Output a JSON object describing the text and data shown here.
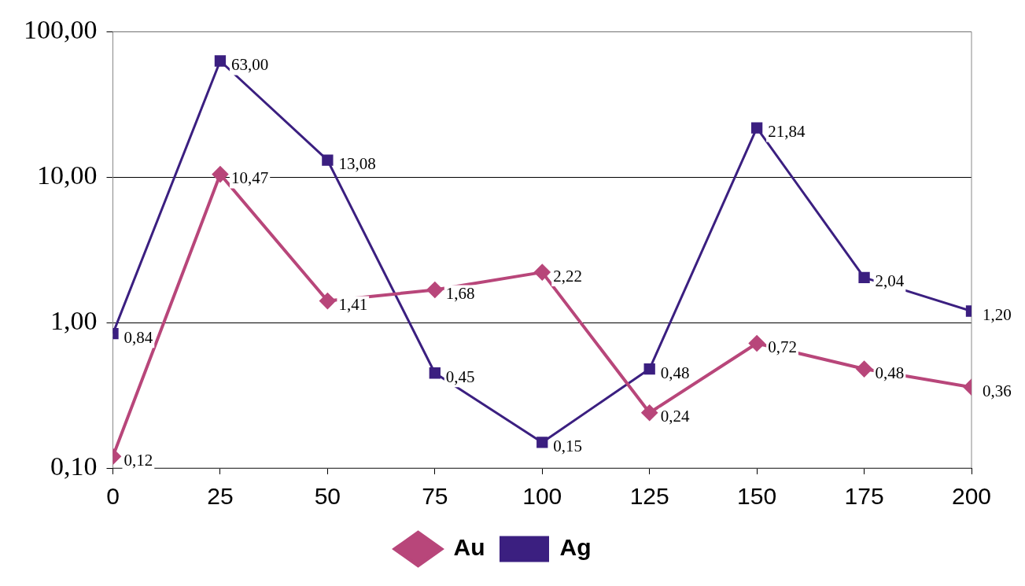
{
  "chart_data": {
    "type": "line",
    "x": [
      0,
      25,
      50,
      75,
      100,
      125,
      150,
      175,
      200
    ],
    "xlim": [
      0,
      200
    ],
    "xticks": [
      0,
      25,
      50,
      75,
      100,
      125,
      150,
      175,
      200
    ],
    "log": "y",
    "ylim": [
      0.1,
      100
    ],
    "yticks": [
      {
        "value": 0.1,
        "label": "0,10"
      },
      {
        "value": 1,
        "label": "1,00"
      },
      {
        "value": 10,
        "label": "10,00"
      },
      {
        "value": 100,
        "label": "100,00"
      }
    ],
    "grid": "y",
    "legend": "bottom",
    "series": [
      {
        "name": "Au",
        "color": "#b8467a",
        "marker": "diamond",
        "values": [
          0.12,
          10.47,
          1.41,
          1.68,
          2.22,
          0.24,
          0.72,
          0.48,
          0.36
        ],
        "value_labels": [
          "0,12",
          "10,47",
          "1,41",
          "1,68",
          "2,22",
          "0,24",
          "0,72",
          "0,48",
          "0,36"
        ]
      },
      {
        "name": "Ag",
        "color": "#3b1f80",
        "marker": "square",
        "values": [
          0.84,
          63,
          13.08,
          0.45,
          0.15,
          0.48,
          21.84,
          2.04,
          1.2
        ],
        "value_labels": [
          "0,84",
          "63,00",
          "13,08",
          "0,45",
          "0,15",
          "0,48",
          "21,84",
          "2,04",
          "1,20"
        ]
      }
    ]
  }
}
